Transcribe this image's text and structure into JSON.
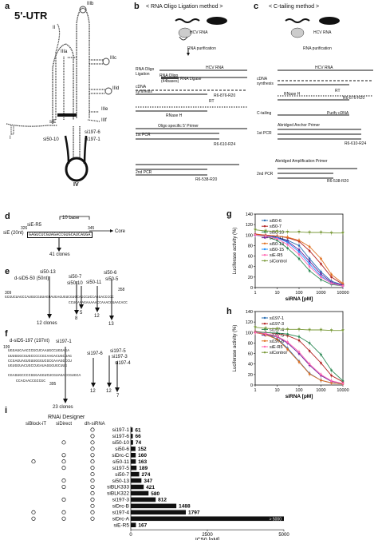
{
  "panels": {
    "a": {
      "label": "a",
      "title": "5'-UTR",
      "stems": [
        "IIIb",
        "II",
        "IIIa",
        "IIIc",
        "IIId",
        "IIIe",
        "IIIf",
        "IV",
        "I"
      ],
      "sirnas": [
        "siE",
        "si50-10",
        "si197-6",
        "si197-1"
      ]
    },
    "b": {
      "label": "b",
      "title": "< RNA Oligo Ligation method >",
      "texts": [
        "HCV RNA",
        "RNA purification",
        "HCV RNA",
        "RNA Oligo Ligation",
        "RNA Oligo",
        "(44bases)",
        "RNA Ligase",
        "cDNA synthesis",
        "RT",
        "RNase H",
        "Oligo specific 5' Primer",
        "1st PCR",
        "R6-610-R24",
        "2nd PCR",
        "R6-538-R20",
        "R6-876-R20"
      ]
    },
    "c": {
      "label": "c",
      "title": "< C-tailing method >",
      "texts": [
        "HCV RNA",
        "RNA purification",
        "HCV RNA",
        "cDNA synthesis",
        "RNase H",
        "RT",
        "R6-876-R20",
        "C-tailing",
        "Purify cDNA",
        "Abridged Anchor Primer",
        "1st PCR",
        "R6-610-R24",
        "Abridged Amplification Primer",
        "2nd PCR",
        "R6-538-R20"
      ]
    },
    "d": {
      "label": "d",
      "name": "siE (20nt)",
      "rs": "siE-R5",
      "base": "10 base",
      "seq": "GAGUCUCGUAGACCGUGCAUCAUGA",
      "start": "326",
      "end": "345",
      "core": "Core",
      "clones": "41 clones"
    },
    "e": {
      "label": "e",
      "name": "d-siD5-50 (50nt)",
      "start": "309",
      "end": "358",
      "seq": "GCGUCUAGCCAUGGCGUUAGUAUGAGUGUCGUGCAGCCUCCAGGACCCCC",
      "tail": "CCUCAAAGAAAAACCAAACGUAACACC",
      "sirnas": [
        "si50-13",
        "si50-7",
        "si50-10",
        "si50-6",
        "si50-11",
        "si50-5"
      ],
      "counts": [
        "12 clones",
        "8",
        "5",
        "12",
        "13"
      ]
    },
    "f": {
      "label": "f",
      "name": "d-siD5-197 (197nt)",
      "start": "199",
      "end": "395",
      "lines": [
        "UGGAUCAACCCGCUCAAUGCCUGGAGA",
        "UUUGGGCGUGCCCCCGCAAGACUGCUAGCCGAGUAGUGUUGGGUCGCGAAAGGCCUUGUGGUACUGCCUGAUAGGGUGCUUG",
        "CGAGUGCCCCGGGAGGUCUCGUAGACCGUGCA",
        "CCACAACCGCCGC"
      ],
      "sirnas": [
        "si197-1",
        "si197-6",
        "si197-5",
        "si197-3",
        "si197-4"
      ],
      "counts": [
        "23 clones",
        "12",
        "12",
        "7"
      ]
    },
    "g": {
      "label": "g"
    },
    "h": {
      "label": "h"
    },
    "i": {
      "label": "i",
      "header": "RNAi Designer",
      "cols": [
        "siBlock-iT",
        "siDirect",
        "dh-siRNA"
      ],
      "rows": [
        {
          "name": "si197-1",
          "value": 61,
          "label": "61",
          "marks": [
            false,
            false,
            true
          ]
        },
        {
          "name": "si197-6",
          "value": 66,
          "label": "66",
          "marks": [
            false,
            false,
            true
          ]
        },
        {
          "name": "si50-10",
          "value": 74,
          "label": "74",
          "marks": [
            false,
            true,
            true
          ]
        },
        {
          "name": "si50-6",
          "value": 152,
          "label": "152",
          "marks": [
            false,
            false,
            true
          ]
        },
        {
          "name": "siDrc-C",
          "value": 160,
          "label": "160",
          "marks": [
            false,
            true,
            true
          ]
        },
        {
          "name": "si50-11",
          "value": 163,
          "label": "163",
          "marks": [
            true,
            true,
            true
          ]
        },
        {
          "name": "si197-5",
          "value": 189,
          "label": "189",
          "marks": [
            false,
            true,
            true
          ]
        },
        {
          "name": "si50-7",
          "value": 274,
          "label": "274",
          "marks": [
            false,
            false,
            true
          ]
        },
        {
          "name": "si50-13",
          "value": 347,
          "label": "347",
          "marks": [
            false,
            true,
            true
          ]
        },
        {
          "name": "siBLK333",
          "value": 421,
          "label": "421",
          "marks": [
            false,
            true,
            true
          ]
        },
        {
          "name": "siBLK322",
          "value": 580,
          "label": "580",
          "marks": [
            false,
            false,
            true
          ]
        },
        {
          "name": "si197-3",
          "value": 812,
          "label": "812",
          "marks": [
            false,
            true,
            true
          ]
        },
        {
          "name": "siDrc-B",
          "value": 1488,
          "label": "1488",
          "marks": [
            false,
            false,
            true
          ]
        },
        {
          "name": "si197-4",
          "value": 1797,
          "label": "1797",
          "marks": [
            true,
            true,
            true
          ]
        },
        {
          "name": "siDrc-A",
          "value": 5000,
          "label": "> 5000",
          "marks": [
            true,
            true,
            true
          ]
        },
        {
          "name": "siE-R5",
          "value": 167,
          "label": "167",
          "marks": [
            false,
            false,
            false
          ]
        }
      ],
      "xticks": [
        "0",
        "2500",
        "5000"
      ],
      "xlabel": "IC50 [pM]"
    }
  },
  "chart_data": [
    {
      "type": "line",
      "panel": "g",
      "ylabel": "Luciferase activity (%)",
      "xlabel": "siRNA [pM]",
      "xscale": "log",
      "xlim": [
        1,
        10000
      ],
      "ylim": [
        0,
        140
      ],
      "yticks": [
        "0",
        "20",
        "40",
        "60",
        "80",
        "100",
        "120",
        "140"
      ],
      "xticks": [
        "1",
        "10",
        "100",
        "1000",
        "10000"
      ],
      "x": [
        1,
        3,
        10,
        30,
        100,
        300,
        1000,
        3000,
        10000
      ],
      "series": [
        {
          "name": "si50-6",
          "color": "#2a6db3",
          "values": [
            100,
            98,
            96,
            90,
            80,
            55,
            30,
            12,
            5
          ]
        },
        {
          "name": "si50-7",
          "color": "#b22222",
          "values": [
            102,
            100,
            98,
            95,
            88,
            70,
            45,
            20,
            6
          ]
        },
        {
          "name": "si50-10",
          "color": "#2e8b57",
          "values": [
            100,
            97,
            90,
            75,
            55,
            32,
            15,
            6,
            3
          ]
        },
        {
          "name": "si50-11",
          "color": "#6a1b9a",
          "values": [
            100,
            99,
            96,
            88,
            72,
            50,
            26,
            10,
            4
          ]
        },
        {
          "name": "si50-13",
          "color": "#e07020",
          "values": [
            101,
            100,
            98,
            96,
            90,
            78,
            55,
            25,
            8
          ]
        },
        {
          "name": "si50-15",
          "color": "#1e90ff",
          "values": [
            100,
            98,
            95,
            86,
            68,
            45,
            22,
            8,
            3
          ]
        },
        {
          "name": "siE-R5",
          "color": "#ff69b4",
          "values": [
            100,
            98,
            93,
            82,
            63,
            40,
            20,
            8,
            3
          ]
        },
        {
          "name": "siControl",
          "color": "#7a9a3a",
          "values": [
            110,
            108,
            107,
            106,
            106,
            105,
            105,
            104,
            104
          ]
        }
      ]
    },
    {
      "type": "line",
      "panel": "h",
      "ylabel": "Luciferase activity (%)",
      "xlabel": "siRNA [pM]",
      "xscale": "log",
      "xlim": [
        1,
        10000
      ],
      "ylim": [
        0,
        140
      ],
      "yticks": [
        "0",
        "20",
        "40",
        "60",
        "80",
        "100",
        "120",
        "140"
      ],
      "xticks": [
        "1",
        "10",
        "100",
        "1000",
        "10000"
      ],
      "x": [
        1,
        3,
        10,
        30,
        100,
        300,
        1000,
        3000,
        10000
      ],
      "series": [
        {
          "name": "si197-1",
          "color": "#2a6db3",
          "values": [
            100,
            96,
            88,
            70,
            45,
            22,
            9,
            4,
            2
          ]
        },
        {
          "name": "si197-3",
          "color": "#b22222",
          "values": [
            102,
            100,
            98,
            94,
            85,
            65,
            42,
            18,
            6
          ]
        },
        {
          "name": "si197-4",
          "color": "#2e8b57",
          "values": [
            101,
            100,
            99,
            97,
            92,
            80,
            58,
            28,
            8
          ]
        },
        {
          "name": "si197-5",
          "color": "#6a1b9a",
          "values": [
            100,
            97,
            92,
            80,
            60,
            38,
            18,
            7,
            3
          ]
        },
        {
          "name": "si197-6",
          "color": "#e07020",
          "values": [
            100,
            96,
            87,
            68,
            44,
            21,
            9,
            4,
            2
          ]
        },
        {
          "name": "siE-R5",
          "color": "#ff69b4",
          "values": [
            100,
            98,
            93,
            82,
            63,
            40,
            20,
            8,
            3
          ]
        },
        {
          "name": "siControl",
          "color": "#7a9a3a",
          "values": [
            110,
            108,
            107,
            106,
            106,
            105,
            105,
            104,
            104
          ]
        }
      ]
    }
  ]
}
